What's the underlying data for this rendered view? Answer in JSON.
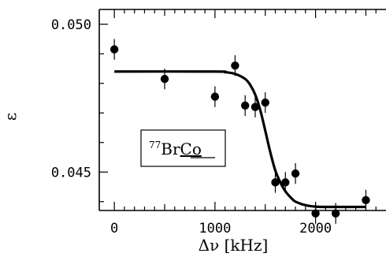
{
  "chart_data": {
    "type": "scatter",
    "xlabel": "Δν [kHz]",
    "ylabel": "ε",
    "xlim": [
      -150,
      2700
    ],
    "ylim": [
      0.0437,
      0.0505
    ],
    "xticks": [
      0,
      1000,
      2000
    ],
    "xtick_labels": [
      "0",
      "1000",
      "2000"
    ],
    "yticks": [
      0.045,
      0.05
    ],
    "ytick_labels": [
      "0.045",
      "0.050"
    ],
    "grid": false,
    "legend": {
      "isotope_mass": "77",
      "element": "Br",
      "partner": "Co",
      "placement": "center-left"
    },
    "series": [
      {
        "kind": "points_with_error_bars",
        "points": [
          {
            "x": 0,
            "y": 0.04915,
            "err": 0.00035
          },
          {
            "x": 500,
            "y": 0.04815,
            "err": 0.00035
          },
          {
            "x": 1000,
            "y": 0.04755,
            "err": 0.00035
          },
          {
            "x": 1200,
            "y": 0.0486,
            "err": 0.00035
          },
          {
            "x": 1300,
            "y": 0.04725,
            "err": 0.00035
          },
          {
            "x": 1400,
            "y": 0.0472,
            "err": 0.00035
          },
          {
            "x": 1500,
            "y": 0.04735,
            "err": 0.00035
          },
          {
            "x": 1600,
            "y": 0.04465,
            "err": 0.00035
          },
          {
            "x": 1700,
            "y": 0.04465,
            "err": 0.00035
          },
          {
            "x": 1800,
            "y": 0.04495,
            "err": 0.00035
          },
          {
            "x": 2000,
            "y": 0.0436,
            "err": 0.00035
          },
          {
            "x": 2200,
            "y": 0.0436,
            "err": 0.00035
          },
          {
            "x": 2500,
            "y": 0.04405,
            "err": 0.00035
          }
        ]
      },
      {
        "kind": "fit_curve",
        "x": [
          0,
          1000,
          1100,
          1200,
          1300,
          1350,
          1400,
          1450,
          1500,
          1550,
          1600,
          1650,
          1700,
          1750,
          1800,
          1900,
          2000,
          2100,
          2200,
          2500
        ],
        "y": [
          0.0484,
          0.0484,
          0.04838,
          0.04832,
          0.04815,
          0.04795,
          0.04762,
          0.0471,
          0.0464,
          0.04567,
          0.04505,
          0.04465,
          0.04435,
          0.04415,
          0.044,
          0.04388,
          0.04383,
          0.04382,
          0.04382,
          0.04382
        ]
      }
    ]
  }
}
